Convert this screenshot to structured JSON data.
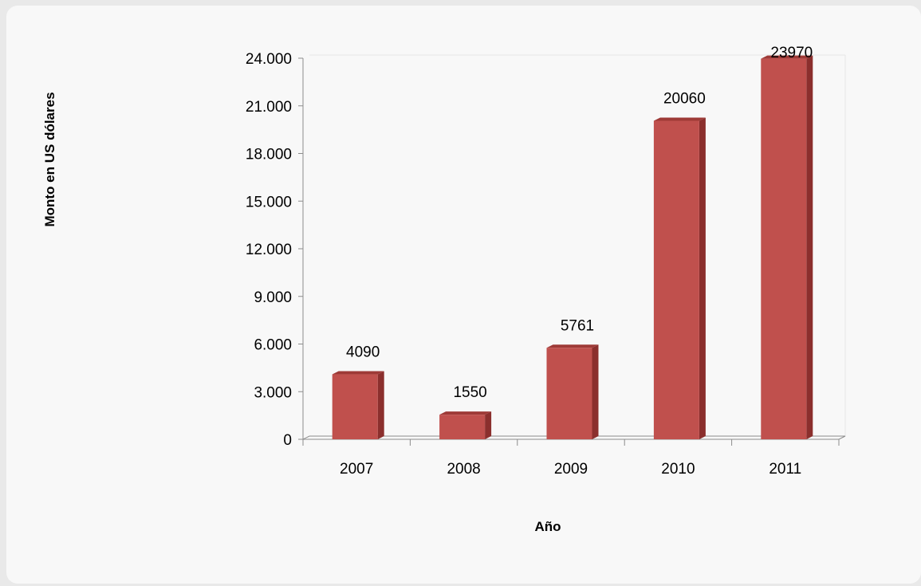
{
  "chart_data": {
    "type": "bar",
    "categories": [
      "2007",
      "2008",
      "2009",
      "2010",
      "2011"
    ],
    "values": [
      4090,
      1550,
      5761,
      20060,
      23970
    ],
    "data_labels": [
      "4090",
      "1550",
      "5761",
      "20060",
      "23970"
    ],
    "title": "",
    "xlabel": "Año",
    "ylabel": "Monto en US dólares",
    "ylim": [
      0,
      24000
    ],
    "yticks": [
      0,
      3000,
      6000,
      9000,
      12000,
      15000,
      18000,
      21000,
      24000
    ],
    "ytick_labels": [
      "0",
      "3.000",
      "6.000",
      "9.000",
      "12.000",
      "15.000",
      "18.000",
      "21.000",
      "24.000"
    ],
    "grid": false,
    "style": "3d-column",
    "colors": {
      "bar_front": "#c0504d",
      "bar_side": "#8b2f2d",
      "bar_top": "#9e3a37",
      "background": "#f8f8f8",
      "page": "#e9e9e9"
    }
  }
}
